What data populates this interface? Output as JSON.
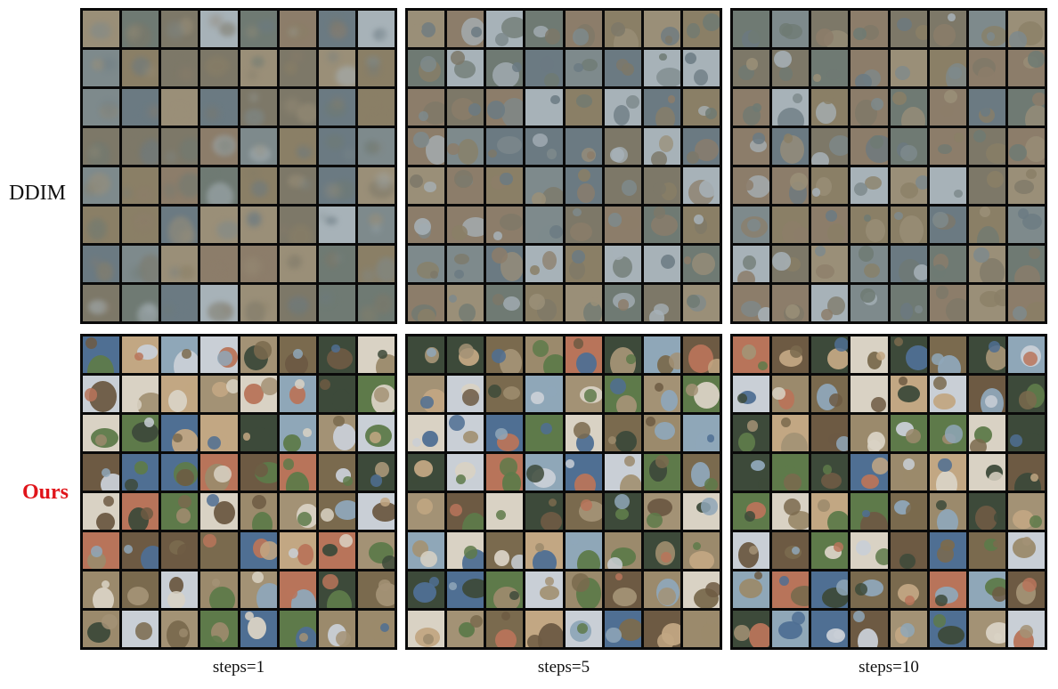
{
  "rows": [
    {
      "label": "DDIM",
      "color": "#111111",
      "sample_style": "blurry",
      "palette": [
        "#8a7f66",
        "#7d7868",
        "#6f7a73",
        "#9a8f78",
        "#7e8a8c",
        "#a7b2b8",
        "#8c7d6a",
        "#6b7a82"
      ]
    },
    {
      "label": "Ours",
      "color": "#e0141a",
      "sample_style": "sharp",
      "palette": [
        "#7a6a4e",
        "#c9cfd6",
        "#9b8a6c",
        "#5e7a4a",
        "#b8745a",
        "#4f6f93",
        "#d9d2c4",
        "#3d4a3a",
        "#a39275",
        "#8fa7b8",
        "#6d5a43",
        "#c2a783"
      ]
    }
  ],
  "columns": [
    {
      "label": "steps=1"
    },
    {
      "label": "steps=5"
    },
    {
      "label": "steps=10"
    }
  ],
  "grid_size": "8x8"
}
